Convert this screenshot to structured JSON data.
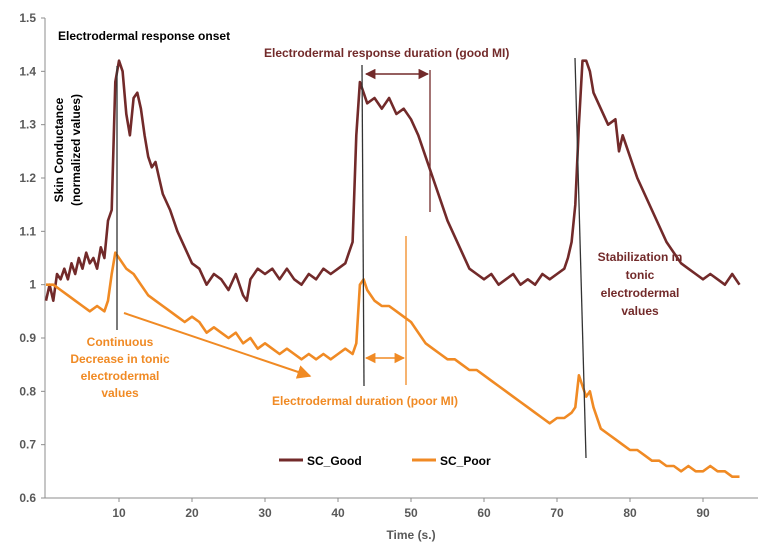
{
  "chart_data": {
    "type": "line",
    "title": "",
    "xlabel": "Time (s.)",
    "ylabel": "Skin Conductance (normalized values)",
    "ylabel_lines": [
      "Skin Conductance",
      "(normalized values)"
    ],
    "xlim": [
      0,
      96
    ],
    "ylim": [
      0.6,
      1.5
    ],
    "x_ticks": [
      10,
      20,
      30,
      40,
      50,
      60,
      70,
      80,
      90
    ],
    "y_ticks": [
      "0.6",
      "0.7",
      "0.8",
      "0.9",
      "1",
      "1.1",
      "1.2",
      "1.3",
      "1.4",
      "1.5"
    ],
    "grid": false,
    "legend_position": "bottom-center",
    "series": [
      {
        "name": "SC_Good",
        "color": "#722a2a",
        "points": [
          [
            0,
            0.97
          ],
          [
            0.5,
            1.0
          ],
          [
            1,
            0.97
          ],
          [
            1.5,
            1.02
          ],
          [
            2,
            1.01
          ],
          [
            2.5,
            1.03
          ],
          [
            3,
            1.01
          ],
          [
            3.5,
            1.04
          ],
          [
            4,
            1.02
          ],
          [
            4.5,
            1.05
          ],
          [
            5,
            1.03
          ],
          [
            5.5,
            1.06
          ],
          [
            6,
            1.04
          ],
          [
            6.5,
            1.05
          ],
          [
            7,
            1.03
          ],
          [
            7.5,
            1.07
          ],
          [
            8,
            1.05
          ],
          [
            8.5,
            1.12
          ],
          [
            9,
            1.14
          ],
          [
            9.5,
            1.38
          ],
          [
            10,
            1.42
          ],
          [
            10.5,
            1.4
          ],
          [
            11,
            1.32
          ],
          [
            11.5,
            1.28
          ],
          [
            12,
            1.35
          ],
          [
            12.5,
            1.36
          ],
          [
            13,
            1.33
          ],
          [
            13.5,
            1.28
          ],
          [
            14,
            1.24
          ],
          [
            14.5,
            1.22
          ],
          [
            15,
            1.23
          ],
          [
            15.5,
            1.2
          ],
          [
            16,
            1.17
          ],
          [
            17,
            1.14
          ],
          [
            18,
            1.1
          ],
          [
            19,
            1.07
          ],
          [
            20,
            1.04
          ],
          [
            21,
            1.03
          ],
          [
            22,
            1.0
          ],
          [
            23,
            1.02
          ],
          [
            24,
            1.01
          ],
          [
            25,
            0.99
          ],
          [
            26,
            1.02
          ],
          [
            27,
            0.98
          ],
          [
            27.5,
            0.97
          ],
          [
            28,
            1.01
          ],
          [
            29,
            1.03
          ],
          [
            30,
            1.02
          ],
          [
            31,
            1.03
          ],
          [
            32,
            1.01
          ],
          [
            33,
            1.03
          ],
          [
            34,
            1.01
          ],
          [
            35,
            1.0
          ],
          [
            36,
            1.02
          ],
          [
            37,
            1.01
          ],
          [
            38,
            1.03
          ],
          [
            39,
            1.02
          ],
          [
            40,
            1.03
          ],
          [
            41,
            1.04
          ],
          [
            41.5,
            1.06
          ],
          [
            42,
            1.08
          ],
          [
            42.5,
            1.28
          ],
          [
            43,
            1.38
          ],
          [
            43.5,
            1.36
          ],
          [
            44,
            1.34
          ],
          [
            45,
            1.35
          ],
          [
            46,
            1.33
          ],
          [
            47,
            1.35
          ],
          [
            48,
            1.32
          ],
          [
            49,
            1.33
          ],
          [
            50,
            1.31
          ],
          [
            51,
            1.28
          ],
          [
            52,
            1.24
          ],
          [
            53,
            1.2
          ],
          [
            54,
            1.16
          ],
          [
            55,
            1.12
          ],
          [
            56,
            1.09
          ],
          [
            57,
            1.06
          ],
          [
            58,
            1.03
          ],
          [
            59,
            1.02
          ],
          [
            60,
            1.01
          ],
          [
            61,
            1.02
          ],
          [
            62,
            1.0
          ],
          [
            63,
            1.01
          ],
          [
            64,
            1.02
          ],
          [
            65,
            1.0
          ],
          [
            66,
            1.01
          ],
          [
            67,
            1.0
          ],
          [
            68,
            1.02
          ],
          [
            69,
            1.01
          ],
          [
            70,
            1.02
          ],
          [
            71,
            1.03
          ],
          [
            71.5,
            1.05
          ],
          [
            72,
            1.08
          ],
          [
            72.5,
            1.15
          ],
          [
            73,
            1.3
          ],
          [
            73.5,
            1.42
          ],
          [
            74,
            1.42
          ],
          [
            74.5,
            1.4
          ],
          [
            75,
            1.36
          ],
          [
            76,
            1.33
          ],
          [
            77,
            1.3
          ],
          [
            78,
            1.31
          ],
          [
            78.5,
            1.25
          ],
          [
            79,
            1.28
          ],
          [
            80,
            1.24
          ],
          [
            81,
            1.2
          ],
          [
            82,
            1.17
          ],
          [
            83,
            1.14
          ],
          [
            84,
            1.11
          ],
          [
            85,
            1.08
          ],
          [
            86,
            1.06
          ],
          [
            87,
            1.04
          ],
          [
            88,
            1.03
          ],
          [
            89,
            1.02
          ],
          [
            90,
            1.01
          ],
          [
            91,
            1.02
          ],
          [
            92,
            1.01
          ],
          [
            93,
            1.0
          ],
          [
            94,
            1.02
          ],
          [
            95,
            1.0
          ]
        ]
      },
      {
        "name": "SC_Poor",
        "color": "#f08a24",
        "points": [
          [
            0,
            1.0
          ],
          [
            1,
            1.0
          ],
          [
            2,
            0.99
          ],
          [
            3,
            0.98
          ],
          [
            4,
            0.97
          ],
          [
            5,
            0.96
          ],
          [
            6,
            0.95
          ],
          [
            7,
            0.96
          ],
          [
            8,
            0.95
          ],
          [
            8.5,
            0.97
          ],
          [
            9,
            1.02
          ],
          [
            9.5,
            1.06
          ],
          [
            10,
            1.05
          ],
          [
            11,
            1.03
          ],
          [
            12,
            1.02
          ],
          [
            13,
            1.0
          ],
          [
            14,
            0.98
          ],
          [
            15,
            0.97
          ],
          [
            16,
            0.96
          ],
          [
            17,
            0.95
          ],
          [
            18,
            0.94
          ],
          [
            19,
            0.93
          ],
          [
            20,
            0.94
          ],
          [
            21,
            0.93
          ],
          [
            22,
            0.91
          ],
          [
            23,
            0.92
          ],
          [
            24,
            0.91
          ],
          [
            25,
            0.9
          ],
          [
            26,
            0.91
          ],
          [
            27,
            0.89
          ],
          [
            28,
            0.9
          ],
          [
            29,
            0.88
          ],
          [
            30,
            0.89
          ],
          [
            31,
            0.88
          ],
          [
            32,
            0.87
          ],
          [
            33,
            0.88
          ],
          [
            34,
            0.87
          ],
          [
            35,
            0.86
          ],
          [
            36,
            0.87
          ],
          [
            37,
            0.86
          ],
          [
            38,
            0.87
          ],
          [
            39,
            0.86
          ],
          [
            40,
            0.87
          ],
          [
            41,
            0.88
          ],
          [
            42,
            0.87
          ],
          [
            42.5,
            0.89
          ],
          [
            43,
            1.0
          ],
          [
            43.5,
            1.01
          ],
          [
            44,
            0.99
          ],
          [
            45,
            0.97
          ],
          [
            46,
            0.96
          ],
          [
            47,
            0.96
          ],
          [
            48,
            0.95
          ],
          [
            49,
            0.94
          ],
          [
            50,
            0.93
          ],
          [
            51,
            0.91
          ],
          [
            52,
            0.89
          ],
          [
            53,
            0.88
          ],
          [
            54,
            0.87
          ],
          [
            55,
            0.86
          ],
          [
            56,
            0.86
          ],
          [
            57,
            0.85
          ],
          [
            58,
            0.84
          ],
          [
            59,
            0.84
          ],
          [
            60,
            0.83
          ],
          [
            61,
            0.82
          ],
          [
            62,
            0.81
          ],
          [
            63,
            0.8
          ],
          [
            64,
            0.79
          ],
          [
            65,
            0.78
          ],
          [
            66,
            0.77
          ],
          [
            67,
            0.76
          ],
          [
            68,
            0.75
          ],
          [
            69,
            0.74
          ],
          [
            70,
            0.75
          ],
          [
            71,
            0.75
          ],
          [
            72,
            0.76
          ],
          [
            72.5,
            0.77
          ],
          [
            73,
            0.83
          ],
          [
            73.5,
            0.81
          ],
          [
            74,
            0.79
          ],
          [
            74.5,
            0.8
          ],
          [
            75,
            0.77
          ],
          [
            76,
            0.73
          ],
          [
            77,
            0.72
          ],
          [
            78,
            0.71
          ],
          [
            79,
            0.7
          ],
          [
            80,
            0.69
          ],
          [
            81,
            0.69
          ],
          [
            82,
            0.68
          ],
          [
            83,
            0.67
          ],
          [
            84,
            0.67
          ],
          [
            85,
            0.66
          ],
          [
            86,
            0.66
          ],
          [
            87,
            0.65
          ],
          [
            88,
            0.66
          ],
          [
            89,
            0.65
          ],
          [
            90,
            0.65
          ],
          [
            91,
            0.66
          ],
          [
            92,
            0.65
          ],
          [
            93,
            0.65
          ],
          [
            94,
            0.64
          ],
          [
            95,
            0.64
          ]
        ]
      }
    ],
    "annotations": [
      {
        "id": "onset",
        "text": "Electrodermal response onset",
        "color": "#000000"
      },
      {
        "id": "good-duration",
        "text": "Electrodermal response duration (good MI)",
        "color": "#722a2a"
      },
      {
        "id": "poor-duration",
        "text": "Electrodermal duration (poor MI)",
        "color": "#f08a24"
      },
      {
        "id": "tonic-decrease",
        "lines": [
          "Continuous",
          "Decrease in tonic",
          "electrodermal",
          "values"
        ],
        "color": "#f08a24"
      },
      {
        "id": "stabilization",
        "lines": [
          "Stabilization in",
          "tonic",
          "electrodermal",
          "values"
        ],
        "color": "#722a2a"
      }
    ]
  }
}
